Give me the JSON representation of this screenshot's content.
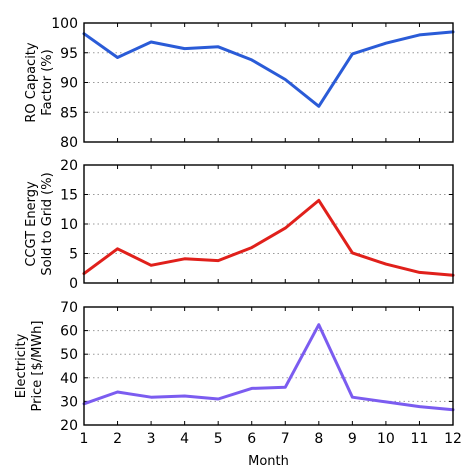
{
  "chart_data": [
    {
      "type": "line",
      "ylabel": [
        "RO Capacity",
        "Factor (%)"
      ],
      "xlabel": "",
      "ylim": [
        80,
        100
      ],
      "yticks": [
        80,
        85,
        90,
        95,
        100
      ],
      "xlim": [
        1,
        12
      ],
      "grid": true,
      "color": "#2a5bd7",
      "x": [
        1,
        2,
        3,
        4,
        5,
        6,
        7,
        8,
        9,
        10,
        11,
        12
      ],
      "values": [
        98.2,
        94.2,
        96.8,
        95.7,
        96.0,
        93.8,
        90.5,
        86.0,
        94.8,
        96.6,
        98.0,
        98.5
      ]
    },
    {
      "type": "line",
      "ylabel": [
        "CCGT Energy",
        "Sold to Grid (%)"
      ],
      "xlabel": "",
      "ylim": [
        0,
        20
      ],
      "yticks": [
        0,
        5,
        10,
        15,
        20
      ],
      "xlim": [
        1,
        12
      ],
      "grid": true,
      "color": "#e0201b",
      "x": [
        1,
        2,
        3,
        4,
        5,
        6,
        7,
        8,
        9,
        10,
        11,
        12
      ],
      "values": [
        1.6,
        5.8,
        3.0,
        4.1,
        3.8,
        6.0,
        9.3,
        14.0,
        5.1,
        3.2,
        1.8,
        1.3
      ]
    },
    {
      "type": "line",
      "ylabel": [
        "Electricity",
        "Price [$/MWh]"
      ],
      "xlabel": "Month",
      "ylim": [
        20,
        70
      ],
      "yticks": [
        20,
        30,
        40,
        50,
        60,
        70
      ],
      "xlim": [
        1,
        12
      ],
      "xticks": [
        1,
        2,
        3,
        4,
        5,
        6,
        7,
        8,
        9,
        10,
        11,
        12
      ],
      "grid": true,
      "color": "#7b5cf0",
      "x": [
        1,
        2,
        3,
        4,
        5,
        6,
        7,
        8,
        9,
        10,
        11,
        12
      ],
      "values": [
        29.0,
        34.0,
        31.8,
        32.3,
        31.0,
        35.5,
        36.0,
        62.5,
        31.8,
        29.8,
        27.8,
        26.5
      ]
    }
  ]
}
